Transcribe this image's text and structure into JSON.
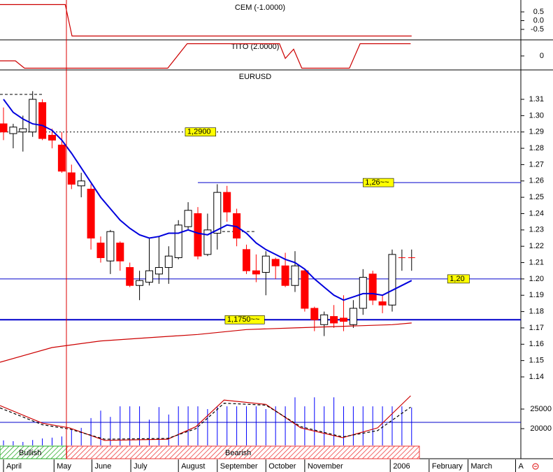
{
  "chart_data": [
    {
      "type": "line",
      "title": "CEM (-1.0000)",
      "xlim": [
        -0.36,
        53.24
      ],
      "ylim": [
        -1.1,
        1.18
      ],
      "yticks": [
        0.5,
        {
          "value": 0,
          "label": "0.0"
        },
        -0.5
      ],
      "series": [
        {
          "color": "#cc0000",
          "x": [
            -0.36,
            6.35,
            7.05,
            42
          ],
          "values": [
            0.92,
            0.92,
            -0.88,
            -0.88
          ]
        }
      ]
    },
    {
      "type": "line",
      "title": "TITO (2.0000)",
      "xlim": [
        -0.36,
        53.24
      ],
      "ylim": [
        -2.29,
        2.63
      ],
      "yticks": [
        0
      ],
      "series": [
        {
          "color": "#cc0000",
          "x": [
            -0.36,
            1.22,
            2.16,
            16.9,
            18.9,
            28.4,
            29.0,
            29.86,
            30.7,
            35.6,
            36.7,
            41.9
          ],
          "values": [
            -0.8,
            -0.8,
            -2,
            -2,
            2,
            2,
            -0.4,
            1.1,
            -2,
            -2,
            2,
            2
          ]
        }
      ]
    },
    {
      "type": "candlestick",
      "title": "EURUSD",
      "xlim": [
        -0.36,
        53.24
      ],
      "ylim": [
        1.131,
        1.328
      ],
      "yticks": [
        1.14,
        1.15,
        1.16,
        1.17,
        1.18,
        1.19,
        {
          "value": 1.2,
          "label": "1.20"
        },
        1.21,
        1.22,
        1.23,
        1.24,
        1.25,
        1.26,
        1.27,
        1.28,
        1.29,
        {
          "value": 1.3,
          "label": "1.30"
        },
        1.31
      ],
      "xticks": [
        {
          "value": 0,
          "label": "April"
        },
        {
          "value": 5.2,
          "label": "May"
        },
        {
          "value": 9.1,
          "label": "June"
        },
        {
          "value": 13.1,
          "label": "July"
        },
        {
          "value": 18,
          "label": "August"
        },
        {
          "value": 22,
          "label": "September"
        },
        {
          "value": 27,
          "label": "October"
        },
        {
          "value": 31,
          "label": "November"
        },
        {
          "value": 39.8,
          "label": "2006"
        },
        {
          "value": 43.8,
          "label": "February"
        },
        {
          "value": 47.8,
          "label": "March"
        },
        {
          "value": 52.7,
          "label": "A"
        }
      ],
      "up_color": "#ffffff",
      "down_color": "#ff0000",
      "open": [
        1.295,
        1.289,
        1.29,
        1.29,
        1.308,
        1.288,
        1.282,
        1.265,
        1.257,
        1.255,
        1.222,
        1.211,
        1.222,
        1.207,
        1.196,
        1.198,
        1.203,
        1.207,
        1.213,
        1.232,
        1.24,
        1.215,
        1.228,
        1.253,
        1.24,
        1.218,
        1.205,
        1.204,
        1.212,
        1.208,
        1.196,
        1.205,
        1.182,
        1.172,
        1.177,
        1.176,
        1.172,
        1.182,
        1.203,
        1.186,
        1.184,
        1.213,
        1.213
      ],
      "high": [
        1.305,
        1.295,
        1.3,
        1.315,
        1.31,
        1.292,
        1.29,
        1.27,
        1.265,
        1.258,
        1.226,
        1.23,
        1.223,
        1.21,
        1.205,
        1.225,
        1.226,
        1.22,
        1.236,
        1.247,
        1.244,
        1.24,
        1.258,
        1.257,
        1.243,
        1.221,
        1.215,
        1.217,
        1.213,
        1.216,
        1.217,
        1.206,
        1.183,
        1.18,
        1.184,
        1.19,
        1.187,
        1.206,
        1.205,
        1.19,
        1.218,
        1.218,
        1.218
      ],
      "low": [
        1.285,
        1.28,
        1.278,
        1.287,
        1.285,
        1.28,
        1.265,
        1.255,
        1.25,
        1.218,
        1.21,
        1.203,
        1.205,
        1.195,
        1.187,
        1.196,
        1.197,
        1.197,
        1.212,
        1.23,
        1.212,
        1.214,
        1.218,
        1.235,
        1.22,
        1.203,
        1.198,
        1.19,
        1.2,
        1.195,
        1.192,
        1.18,
        1.168,
        1.165,
        1.17,
        1.168,
        1.17,
        1.178,
        1.184,
        1.179,
        1.18,
        1.205,
        1.205
      ],
      "close": [
        1.29,
        1.293,
        1.292,
        1.31,
        1.286,
        1.285,
        1.266,
        1.258,
        1.26,
        1.225,
        1.213,
        1.229,
        1.211,
        1.196,
        1.199,
        1.205,
        1.207,
        1.214,
        1.233,
        1.242,
        1.214,
        1.23,
        1.253,
        1.241,
        1.225,
        1.205,
        1.203,
        1.214,
        1.208,
        1.196,
        1.208,
        1.182,
        1.175,
        1.178,
        1.173,
        1.174,
        1.182,
        1.201,
        1.187,
        1.184,
        1.215,
        1.213,
        1.213
      ],
      "lines": [
        {
          "color": "#0000dd",
          "x": [
            0,
            1,
            2,
            3,
            4,
            5,
            6,
            7,
            8,
            9,
            10,
            11,
            12,
            13,
            14,
            15,
            16,
            17,
            18,
            19,
            20,
            21,
            22,
            23,
            24,
            25,
            26,
            27,
            28,
            29,
            30,
            31,
            32,
            33,
            34,
            35,
            36,
            37,
            38,
            39,
            40,
            41,
            42
          ],
          "values": [
            1.31,
            1.302,
            1.298,
            1.295,
            1.294,
            1.291,
            1.285,
            1.277,
            1.268,
            1.259,
            1.25,
            1.243,
            1.236,
            1.231,
            1.227,
            1.225,
            1.226,
            1.228,
            1.228,
            1.23,
            1.228,
            1.227,
            1.23,
            1.233,
            1.232,
            1.228,
            1.222,
            1.218,
            1.215,
            1.212,
            1.21,
            1.206,
            1.2,
            1.195,
            1.19,
            1.187,
            1.189,
            1.191,
            1.191,
            1.19,
            1.193,
            1.196,
            1.199
          ]
        },
        {
          "color": "#cc0000",
          "x": [
            -0.36,
            5,
            10,
            15,
            20,
            25,
            30,
            35,
            40,
            42
          ],
          "values": [
            1.149,
            1.158,
            1.162,
            1.164,
            1.166,
            1.169,
            1.17,
            1.171,
            1.172,
            1.173
          ]
        }
      ],
      "levels": [
        {
          "value": 1.29,
          "label": "1,2900",
          "label_x": 18.7,
          "from": -0.36,
          "to": 53.24,
          "style": "dotted",
          "color": "#000000"
        },
        {
          "value": 1.259,
          "label": "1,26~~",
          "label_x": 37,
          "from": 20,
          "to": 53.24,
          "style": "solid",
          "color": "#0000cc"
        },
        {
          "value": 1.2,
          "label": "1,20",
          "label_x": 45.7,
          "from": -0.36,
          "to": 53.24,
          "style": "solid",
          "color": "#0000cc"
        },
        {
          "value": 1.175,
          "label": "1,1750~~",
          "label_x": 22.8,
          "from": -0.36,
          "to": 53.24,
          "style": "thick",
          "color": "#0000cc"
        },
        {
          "value": 1.313,
          "from": -0.36,
          "to": 4,
          "style": "dashed",
          "color": "#000000"
        },
        {
          "value": 1.229,
          "from": 21,
          "to": 26,
          "style": "dashed",
          "color": "#000000"
        }
      ]
    },
    {
      "type": "bar",
      "xlim": [
        -0.36,
        53.24
      ],
      "ylim": [
        15714,
        28571
      ],
      "yticks": [
        20000,
        25000
      ],
      "color": "#0000ff",
      "x": [
        0,
        1,
        2,
        3,
        4,
        5,
        6,
        7,
        8,
        9,
        10,
        11,
        12,
        13,
        14,
        15,
        16,
        17,
        18,
        19,
        20,
        21,
        22,
        23,
        24,
        25,
        26,
        27,
        28,
        29,
        30,
        31,
        32,
        33,
        34,
        35,
        36,
        37,
        38,
        39,
        40,
        41,
        42
      ],
      "values": [
        17000,
        16800,
        16600,
        17100,
        17500,
        17700,
        18000,
        19600,
        20200,
        22700,
        24600,
        23000,
        25700,
        25700,
        25700,
        22300,
        25500,
        23600,
        25700,
        25700,
        25700,
        25000,
        25700,
        25700,
        25700,
        25700,
        25700,
        25000,
        25700,
        25700,
        28000,
        25700,
        28000,
        25700,
        28000,
        25700,
        25700,
        25700,
        25700,
        25700,
        25700,
        25700,
        25400
      ],
      "lines": [
        {
          "color": "#cc0000",
          "style": "solid",
          "x": [
            -0.36,
            4,
            6.8,
            10.4,
            16.9,
            19.8,
            22.7,
            27,
            30.6,
            34.9,
            38.5,
            41.9
          ],
          "values": [
            25900,
            21400,
            20200,
            17000,
            17300,
            20500,
            27300,
            26200,
            20200,
            17700,
            20200,
            28400
          ]
        },
        {
          "color": "#000000",
          "style": "dashed",
          "x": [
            -0.36,
            4,
            6.8,
            10.4,
            16.9,
            19.8,
            22.7,
            27,
            30.6,
            34.9,
            38.5,
            41.9
          ],
          "values": [
            25300,
            21000,
            19900,
            17300,
            17500,
            20000,
            26500,
            26000,
            20500,
            17900,
            19500,
            25500
          ]
        }
      ],
      "levels": [
        {
          "value": 21600,
          "color": "#0000cc"
        }
      ],
      "bands": [
        {
          "label": "Bullish",
          "from": -0.36,
          "to": 6.5,
          "color": "#22aa22"
        },
        {
          "label": "Bearish",
          "from": 6.5,
          "to": 42.8,
          "color": "#ee3333"
        }
      ]
    }
  ]
}
